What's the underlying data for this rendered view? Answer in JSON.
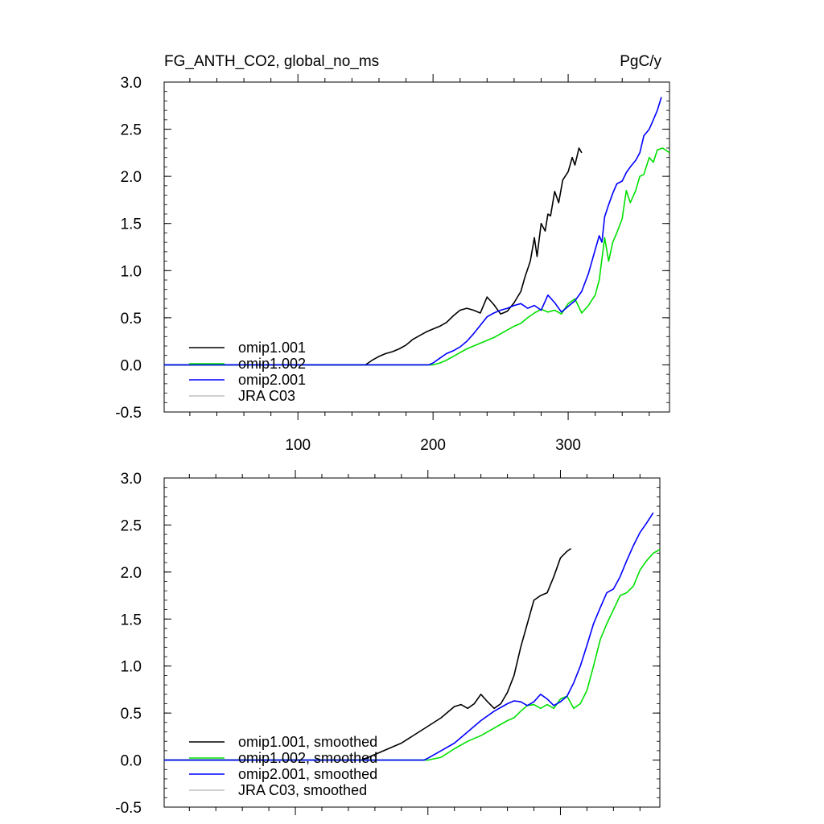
{
  "chart_data": [
    {
      "type": "line",
      "title": "FG_ANTH_CO2, global_no_ms",
      "units": "PgC/y",
      "xlim": [
        1,
        375
      ],
      "ylim": [
        -0.5,
        3.0
      ],
      "x_ticks": [
        100,
        200,
        300
      ],
      "x_tick_labels": [
        "100",
        "200",
        "300"
      ],
      "y_ticks": [
        -0.5,
        0.0,
        0.5,
        1.0,
        1.5,
        2.0,
        2.5,
        3.0
      ],
      "y_tick_labels": [
        "-0.5",
        "0.0",
        "0.5",
        "1.0",
        "1.5",
        "2.0",
        "2.5",
        "3.0"
      ],
      "legend_position": "bottom-left",
      "series": [
        {
          "name": "omip1.001",
          "color": "#000000",
          "x": [
            1,
            150,
            155,
            160,
            165,
            170,
            175,
            180,
            185,
            190,
            195,
            200,
            205,
            210,
            215,
            220,
            225,
            230,
            235,
            240,
            245,
            250,
            255,
            260,
            265,
            268,
            272,
            275,
            277,
            280,
            283,
            285,
            287,
            290,
            293,
            296,
            300,
            303,
            305,
            308,
            310
          ],
          "y": [
            0,
            0,
            0.05,
            0.09,
            0.12,
            0.14,
            0.17,
            0.21,
            0.27,
            0.31,
            0.35,
            0.38,
            0.41,
            0.45,
            0.52,
            0.58,
            0.6,
            0.58,
            0.55,
            0.72,
            0.64,
            0.54,
            0.57,
            0.66,
            0.78,
            0.93,
            1.1,
            1.35,
            1.15,
            1.5,
            1.42,
            1.6,
            1.58,
            1.84,
            1.72,
            1.96,
            2.05,
            2.2,
            2.12,
            2.3,
            2.25
          ]
        },
        {
          "name": "omip1.002",
          "color": "#00e000",
          "x": [
            1,
            197,
            200,
            205,
            210,
            215,
            220,
            225,
            230,
            235,
            240,
            245,
            250,
            255,
            260,
            265,
            270,
            275,
            280,
            285,
            290,
            295,
            300,
            305,
            310,
            315,
            320,
            323,
            327,
            330,
            333,
            336,
            340,
            343,
            346,
            350,
            353,
            356,
            360,
            363,
            366,
            370,
            373,
            375
          ],
          "y": [
            0,
            0,
            0,
            0.02,
            0.05,
            0.09,
            0.13,
            0.17,
            0.2,
            0.23,
            0.26,
            0.29,
            0.33,
            0.37,
            0.41,
            0.44,
            0.5,
            0.55,
            0.59,
            0.56,
            0.58,
            0.54,
            0.65,
            0.7,
            0.55,
            0.63,
            0.74,
            0.9,
            1.35,
            1.1,
            1.3,
            1.4,
            1.55,
            1.85,
            1.72,
            1.85,
            2.0,
            2.02,
            2.2,
            2.15,
            2.28,
            2.3,
            2.27,
            2.25
          ]
        },
        {
          "name": "omip2.001",
          "color": "#0000ff",
          "x": [
            1,
            197,
            200,
            205,
            210,
            215,
            220,
            225,
            230,
            235,
            240,
            245,
            250,
            255,
            260,
            265,
            270,
            275,
            280,
            285,
            290,
            295,
            300,
            305,
            310,
            315,
            320,
            323,
            325,
            327,
            330,
            333,
            336,
            340,
            343,
            346,
            350,
            353,
            356,
            360,
            363,
            366,
            369
          ],
          "y": [
            0,
            0,
            0.02,
            0.07,
            0.12,
            0.15,
            0.19,
            0.25,
            0.33,
            0.42,
            0.51,
            0.55,
            0.58,
            0.6,
            0.63,
            0.65,
            0.6,
            0.63,
            0.58,
            0.74,
            0.66,
            0.56,
            0.62,
            0.68,
            0.78,
            0.97,
            1.22,
            1.37,
            1.3,
            1.57,
            1.7,
            1.82,
            1.92,
            1.95,
            2.04,
            2.1,
            2.17,
            2.25,
            2.43,
            2.5,
            2.6,
            2.7,
            2.84
          ]
        },
        {
          "name": "JRA C03",
          "color": "#c0c0c0",
          "x": [],
          "y": []
        }
      ]
    },
    {
      "type": "line",
      "xlim": [
        1,
        375
      ],
      "ylim": [
        -0.5,
        3.0
      ],
      "y_ticks": [
        -0.5,
        0.0,
        0.5,
        1.0,
        1.5,
        2.0,
        2.5,
        3.0
      ],
      "y_tick_labels": [
        "-0.5",
        "0.0",
        "0.5",
        "1.0",
        "1.5",
        "2.0",
        "2.5",
        "3.0"
      ],
      "legend_position": "bottom-left",
      "series": [
        {
          "name": "omip1.001, smoothed",
          "color": "#000000",
          "x": [
            1,
            150,
            160,
            170,
            180,
            190,
            200,
            210,
            220,
            225,
            230,
            235,
            240,
            245,
            250,
            255,
            260,
            265,
            270,
            275,
            280,
            285,
            290,
            295,
            300,
            305,
            308
          ],
          "y": [
            0,
            0,
            0.06,
            0.12,
            0.18,
            0.27,
            0.36,
            0.45,
            0.57,
            0.59,
            0.55,
            0.6,
            0.7,
            0.62,
            0.55,
            0.6,
            0.72,
            0.9,
            1.2,
            1.45,
            1.7,
            1.75,
            1.78,
            1.95,
            2.15,
            2.22,
            2.25
          ]
        },
        {
          "name": "omip1.002, smoothed",
          "color": "#00e000",
          "x": [
            1,
            197,
            200,
            210,
            220,
            230,
            240,
            250,
            260,
            265,
            270,
            275,
            280,
            285,
            290,
            295,
            300,
            305,
            310,
            315,
            320,
            325,
            330,
            335,
            340,
            345,
            350,
            355,
            360,
            365,
            370,
            375
          ],
          "y": [
            0,
            0,
            0,
            0.03,
            0.12,
            0.2,
            0.26,
            0.34,
            0.42,
            0.45,
            0.52,
            0.58,
            0.59,
            0.55,
            0.59,
            0.55,
            0.65,
            0.68,
            0.55,
            0.6,
            0.74,
            1.0,
            1.28,
            1.45,
            1.6,
            1.75,
            1.78,
            1.85,
            2.02,
            2.12,
            2.2,
            2.24
          ]
        },
        {
          "name": "omip2.001, smoothed",
          "color": "#0000ff",
          "x": [
            1,
            197,
            200,
            210,
            220,
            230,
            240,
            250,
            260,
            265,
            270,
            275,
            280,
            285,
            290,
            295,
            300,
            305,
            310,
            315,
            320,
            325,
            330,
            335,
            340,
            345,
            350,
            355,
            360,
            365,
            370
          ],
          "y": [
            0,
            0,
            0.02,
            0.1,
            0.18,
            0.3,
            0.42,
            0.52,
            0.6,
            0.63,
            0.62,
            0.58,
            0.62,
            0.7,
            0.65,
            0.58,
            0.62,
            0.68,
            0.82,
            1.0,
            1.22,
            1.45,
            1.62,
            1.78,
            1.82,
            1.95,
            2.12,
            2.28,
            2.42,
            2.52,
            2.63
          ]
        },
        {
          "name": "JRA C03, smoothed",
          "color": "#c0c0c0",
          "x": [],
          "y": []
        }
      ]
    }
  ]
}
